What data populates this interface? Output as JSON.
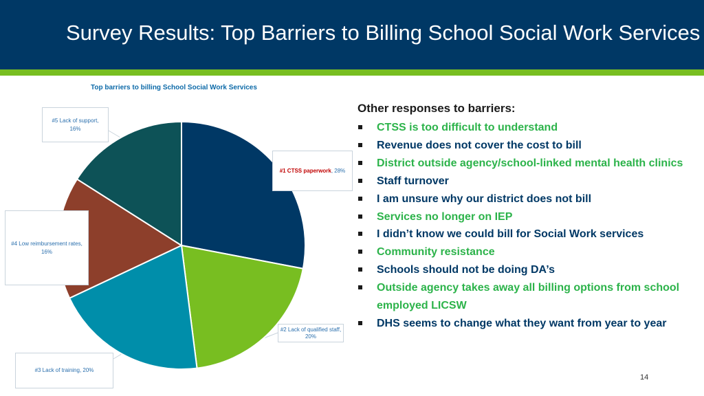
{
  "slide": {
    "title": "Survey Results: Top Barriers to Billing School Social Work Services",
    "page_number": "14"
  },
  "colors": {
    "header": "#003865",
    "accent_green": "#78be21",
    "text_green": "#2cb34a",
    "text_dark_blue": "#003865"
  },
  "chart_data": {
    "type": "pie",
    "title": "Top barriers to billing School Social Work Services",
    "slices": [
      {
        "label": "#1 CTSS paperwork",
        "percent_label": "28%",
        "value": 28,
        "color": "#003865"
      },
      {
        "label": "#2 Lack of qualified staff,",
        "percent_label": "20%",
        "value": 20,
        "color": "#78be21"
      },
      {
        "label": "#3 Lack of training,",
        "percent_label": "20%",
        "value": 20,
        "color": "#008eaa"
      },
      {
        "label": "#4 Low reimbursement rates,",
        "percent_label": "16%",
        "value": 16,
        "color": "#8d3f2b"
      },
      {
        "label": "#5 Lack of support,",
        "percent_label": "16%",
        "value": 16,
        "color": "#0d5257"
      }
    ]
  },
  "other_responses": {
    "title": "Other responses to barriers:",
    "items": [
      {
        "text": "CTSS is too difficult to understand",
        "color": "#2cb34a"
      },
      {
        "text": "Revenue does not cover the cost to bill",
        "color": "#003865"
      },
      {
        "text": "District outside agency/school-linked mental health clinics",
        "color": "#2cb34a"
      },
      {
        "text": " Staff turnover",
        "color": "#003865"
      },
      {
        "text": "I am unsure why our district does not bill",
        "color": "#003865"
      },
      {
        "text": "Services no longer on IEP",
        "color": "#2cb34a"
      },
      {
        "text": "I didn’t know we could bill for Social Work services",
        "color": "#003865"
      },
      {
        "text": "Community resistance",
        "color": "#2cb34a"
      },
      {
        "text": "Schools should not be doing DA’s",
        "color": "#003865"
      },
      {
        "text": "Outside agency takes away all billing options from school employed LICSW",
        "color": "#2cb34a"
      },
      {
        "text": "DHS seems to change what they want from year to year",
        "color": "#003865"
      }
    ]
  }
}
